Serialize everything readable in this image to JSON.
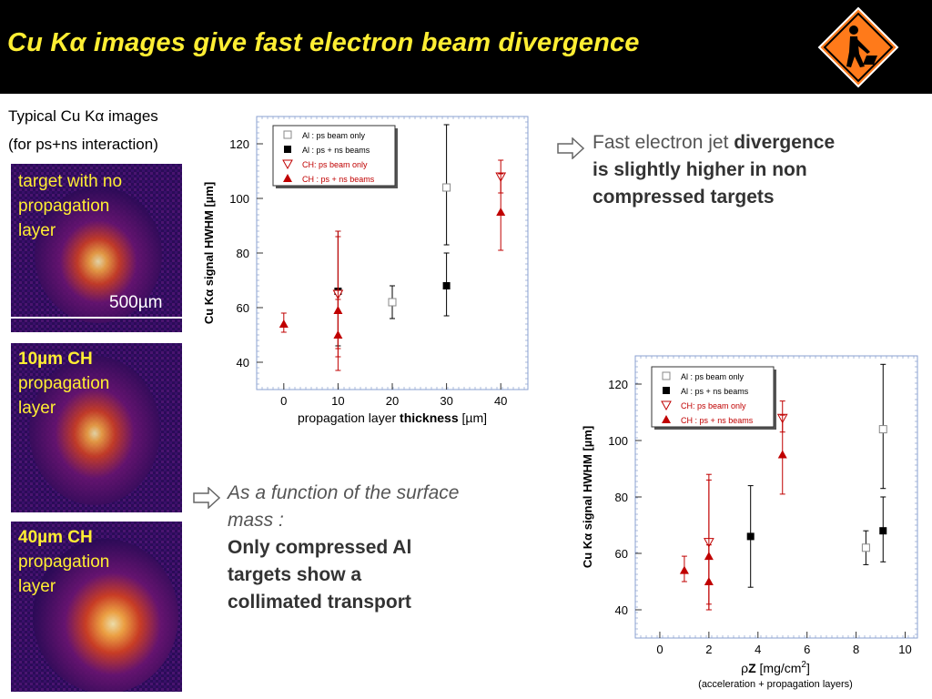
{
  "title_prefix": "Cu K",
  "title_suffix": " images give fast electron beam divergence",
  "left": {
    "line1": "Typical Cu K",
    "line1_end": " images",
    "line2": "(for ps+ns interaction)",
    "panels": [
      {
        "line1": "target with no",
        "line2": "propagation",
        "line3": "layer",
        "scale": "500µm"
      },
      {
        "line1": "10µm CH",
        "line2": "propagation",
        "line3": "layer"
      },
      {
        "line1": "40µm CH",
        "line2": "propagation",
        "line3": "layer"
      }
    ]
  },
  "note1": {
    "normal": "Fast electron jet ",
    "bold1": "divergence",
    "bold2": "is slightly higher in non",
    "bold3": "compressed targets"
  },
  "note2": {
    "italic1": "As a function of the surface",
    "italic2": "mass :",
    "bold1": "Only compressed Al",
    "bold2": "targets show a",
    "bold3": "collimated transport"
  },
  "colors": {
    "header_bg": "#000000",
    "title": "#ffee33",
    "red_series": "#c00000",
    "sign": "#ff7a1a"
  },
  "chart_data": [
    {
      "type": "scatter",
      "xlabel_pre": "propagation layer  ",
      "xlabel_bold": "thickness",
      "xlabel_post": " [µm]",
      "ylabel_pre": "Cu K",
      "ylabel_post": " signal HWHM [µm]",
      "xlim": [
        -5,
        45
      ],
      "ylim": [
        30,
        130
      ],
      "xticks": [
        0,
        10,
        20,
        30,
        40
      ],
      "yticks": [
        40,
        60,
        80,
        100,
        120
      ],
      "legend_position": "top-left",
      "series": [
        {
          "name": "Al :  ps beam only",
          "marker": "square-open",
          "color": "#000000",
          "points": [
            {
              "x": 20,
              "y": 62,
              "lo": 56,
              "hi": 68
            },
            {
              "x": 30,
              "y": 104,
              "lo": 83,
              "hi": 127
            }
          ]
        },
        {
          "name": "Al :  ps + ns beams",
          "marker": "square",
          "color": "#000000",
          "points": [
            {
              "x": 10,
              "y": 66,
              "lo": 46,
              "hi": 88
            },
            {
              "x": 30,
              "y": 68,
              "lo": 57,
              "hi": 80
            }
          ]
        },
        {
          "name": "CH:  ps beam only",
          "marker": "triangle-down-open",
          "color": "#c00000",
          "points": [
            {
              "x": 10,
              "y": 65,
              "lo": 45,
              "hi": 88
            },
            {
              "x": 40,
              "y": 108,
              "lo": 102,
              "hi": 114
            }
          ]
        },
        {
          "name": "CH :  ps + ns beams",
          "marker": "triangle",
          "color": "#c00000",
          "points": [
            {
              "x": 0,
              "y": 54,
              "lo": 51,
              "hi": 58
            },
            {
              "x": 10,
              "y": 59,
              "lo": 42,
              "hi": 86
            },
            {
              "x": 10,
              "y": 50,
              "lo": 37,
              "hi": 63
            },
            {
              "x": 40,
              "y": 95,
              "lo": 81,
              "hi": 109
            }
          ]
        }
      ]
    },
    {
      "type": "scatter",
      "xlabel_rho": "ρ",
      "xlabel_bold": "Z",
      "xlabel_post": " [mg/cm",
      "xlabel_sup": "2",
      "xlabel_end": "]",
      "xsub": "(acceleration + propagation layers)",
      "ylabel_pre": "Cu K",
      "ylabel_post": " signal HWHM [µm]",
      "xlim": [
        -1,
        10.5
      ],
      "ylim": [
        30,
        130
      ],
      "xticks": [
        0,
        2,
        4,
        6,
        8,
        10
      ],
      "yticks": [
        40,
        60,
        80,
        100,
        120
      ],
      "legend_position": "top-left",
      "series": [
        {
          "name": "Al :  ps beam only",
          "marker": "square-open",
          "color": "#000000",
          "points": [
            {
              "x": 8.4,
              "y": 62,
              "lo": 56,
              "hi": 68
            },
            {
              "x": 9.1,
              "y": 104,
              "lo": 83,
              "hi": 127
            }
          ]
        },
        {
          "name": "Al :  ps + ns beams",
          "marker": "square",
          "color": "#000000",
          "points": [
            {
              "x": 3.7,
              "y": 66,
              "lo": 48,
              "hi": 84
            },
            {
              "x": 9.1,
              "y": 68,
              "lo": 57,
              "hi": 80
            }
          ]
        },
        {
          "name": "CH:  ps beam only",
          "marker": "triangle-down-open",
          "color": "#c00000",
          "points": [
            {
              "x": 2.0,
              "y": 64,
              "lo": 40,
              "hi": 88
            },
            {
              "x": 5.0,
              "y": 108,
              "lo": 103,
              "hi": 114
            }
          ]
        },
        {
          "name": "CH :  ps + ns beams",
          "marker": "triangle",
          "color": "#c00000",
          "points": [
            {
              "x": 1.0,
              "y": 54,
              "lo": 50,
              "hi": 59
            },
            {
              "x": 2.0,
              "y": 59,
              "lo": 42,
              "hi": 86
            },
            {
              "x": 2.0,
              "y": 50,
              "lo": 40,
              "hi": 63
            },
            {
              "x": 5.0,
              "y": 95,
              "lo": 81,
              "hi": 109
            }
          ]
        }
      ]
    }
  ]
}
